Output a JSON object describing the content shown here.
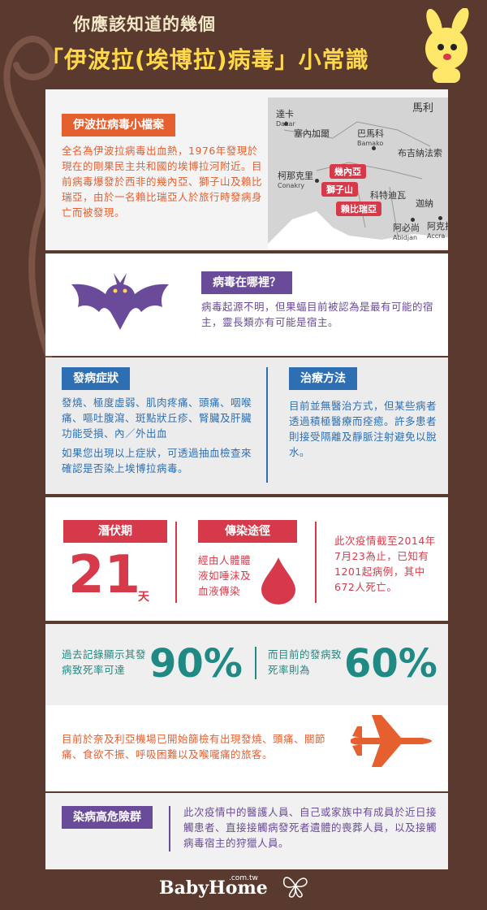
{
  "header": {
    "line1": "你應該知道的幾個",
    "line2": "「伊波拉(埃博拉)病毒」小常識"
  },
  "profile": {
    "tag": "伊波拉病毒小檔案",
    "body": "全名為伊波拉病毒出血熱，1976年發現於現在的剛果民主共和國的埃博拉河附近。目前病毒爆發於西非的幾內亞、獅子山及賴比瑞亞，由於一名賴比瑞亞人於旅行時發病身亡而被發現。"
  },
  "map": {
    "labels": {
      "mali": "馬利",
      "dakar": "達卡",
      "dakar_en": "Dakar",
      "gambia": "塞內加爾",
      "bamako": "巴馬科",
      "bamako_en": "Bamako",
      "burkina": "布吉納法索",
      "conakry": "柯那克里",
      "conakry_en": "Conakry",
      "ivory": "科特迪瓦",
      "ghana": "迦納",
      "abidjan": "阿必尚",
      "abidjan_en": "Abidjan",
      "accra": "阿克拉",
      "accra_en": "Accra"
    },
    "highlights": [
      "幾內亞",
      "獅子山",
      "賴比瑞亞"
    ],
    "color_land": "#d4d4d4"
  },
  "origin": {
    "tag": "病毒在哪裡？",
    "body": "病毒起源不明，但果蝠目前被認為是最有可能的宿主，靈長類亦有可能是宿主。",
    "icon": "bat-icon"
  },
  "symptoms": {
    "tag": "發病症狀",
    "body": "發燒、極度虛弱、肌肉疼痛、頭痛、咽喉痛、嘔吐腹瀉、斑點狀丘疹、腎臟及肝臟功能受損、內／外出血",
    "body2": "如果您出現以上症狀，可透過抽血檢查來確認是否染上埃博拉病毒。"
  },
  "treatment": {
    "tag": "治療方法",
    "body": "目前並無醫治方式，但某些病者透過積極醫療而痊癒。許多患者則接受隔離及靜脈注射避免以脫水。"
  },
  "incubation": {
    "tag": "潛伏期",
    "number": "21",
    "unit": "天"
  },
  "transmission": {
    "tag": "傳染途徑",
    "body": "經由人體體液如唾沫及血液傳染",
    "icon": "blood-drop-icon"
  },
  "cases": {
    "body": "此次疫情截至2014年7月23為止，已知有1201起病例，其中672人死亡。"
  },
  "mortality": {
    "past_text": "過去記錄顯示其發病致死率可達",
    "past_value": "90%",
    "current_text": "而目前的發病致死率則為",
    "current_value": "60%"
  },
  "airport": {
    "body": "目前於奈及利亞機場已開始篩檢有出現發燒、頭痛、關節痛、食欲不振、呼吸困難以及喉嚨痛的旅客。",
    "icon": "airplane-icon"
  },
  "risk": {
    "tag": "染病高危險群",
    "body": "此次疫情中的醫護人員、自己或家族中有成員於近日接觸患者、直接接觸病發死者遺體的喪葬人員，以及接觸病毒宿主的狩獵人員。"
  },
  "footer": {
    "brand": "BabyHome",
    "domain": ".com.tw"
  },
  "colors": {
    "background": "#5a3a2e",
    "orange": "#e65f2f",
    "purple": "#6a4b9a",
    "blue": "#2e6fb3",
    "red": "#d63a4a",
    "teal": "#1f8a83",
    "yellow": "#ffd84a"
  }
}
